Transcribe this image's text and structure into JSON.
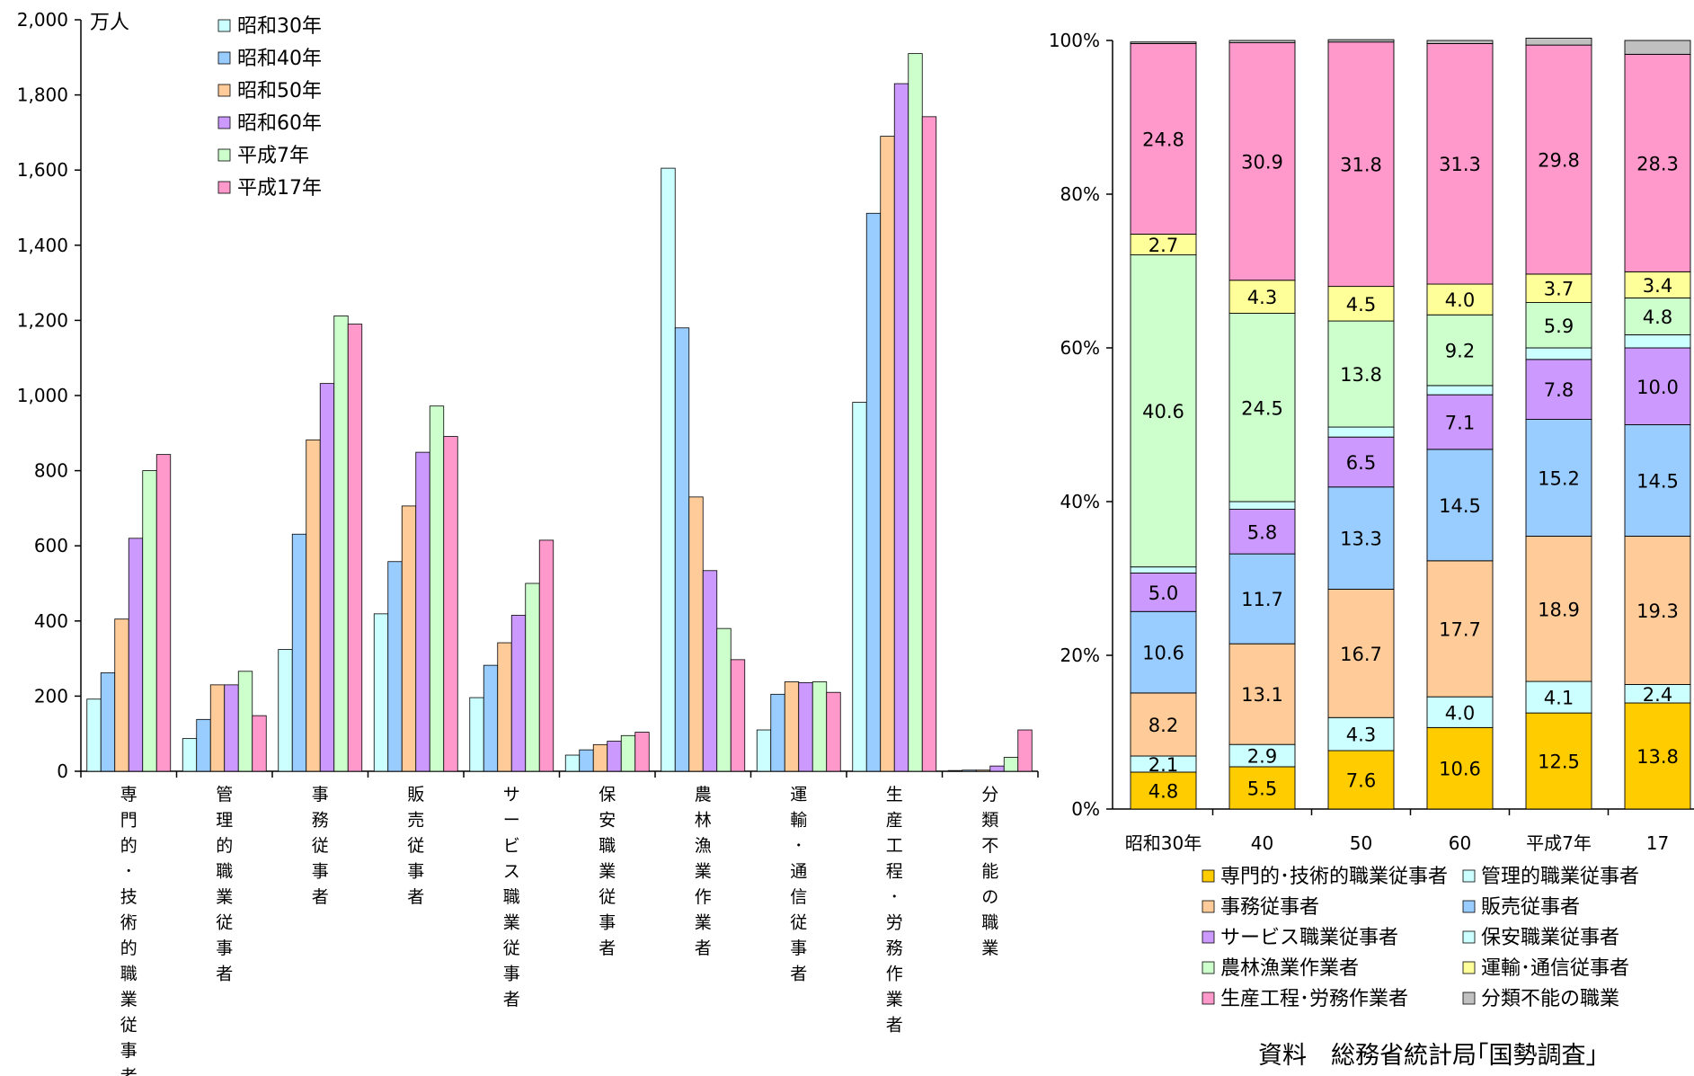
{
  "chart_data": [
    {
      "type": "bar",
      "unit_label": "万人",
      "ylim": [
        0,
        2000
      ],
      "yticks": [
        "0",
        "200",
        "400",
        "600",
        "800",
        "1,000",
        "1,200",
        "1,400",
        "1,600",
        "1,800",
        "2,000"
      ],
      "legend_position": "top-left",
      "categories": [
        "専門的・技術的職業従事者",
        "管理的職業従事者",
        "事務従事者",
        "販売従事者",
        "サービス職業従事者",
        "保安職業従事者",
        "農林漁業作業者",
        "運輸・通信従事者",
        "生産工程・労務作業者",
        "分類不能の職業"
      ],
      "series": [
        {
          "name": "昭和30年",
          "color": "#ccffff",
          "values": [
            192,
            87,
            324,
            419,
            196,
            43,
            1605,
            110,
            982,
            2
          ]
        },
        {
          "name": "昭和40年",
          "color": "#99ccff",
          "values": [
            262,
            138,
            631,
            558,
            282,
            57,
            1180,
            205,
            1485,
            3
          ]
        },
        {
          "name": "昭和50年",
          "color": "#ffcc99",
          "values": [
            405,
            230,
            882,
            706,
            342,
            71,
            730,
            238,
            1690,
            3
          ]
        },
        {
          "name": "昭和60年",
          "color": "#cc99ff",
          "values": [
            620,
            230,
            1032,
            849,
            415,
            80,
            534,
            236,
            1830,
            14
          ]
        },
        {
          "name": "平成7年",
          "color": "#ccffcc",
          "values": [
            800,
            266,
            1212,
            972,
            500,
            95,
            380,
            238,
            1910,
            37
          ]
        },
        {
          "name": "平成17年",
          "color": "#ff99cc",
          "values": [
            843,
            148,
            1190,
            891,
            615,
            104,
            297,
            210,
            1742,
            110
          ]
        }
      ]
    },
    {
      "type": "bar",
      "stacked": true,
      "ylim": [
        0,
        100
      ],
      "yticks": [
        "0%",
        "20%",
        "40%",
        "60%",
        "80%",
        "100%"
      ],
      "legend_position": "bottom",
      "categories": [
        "昭和30年",
        "40",
        "50",
        "60",
        "平成7年",
        "17"
      ],
      "series": [
        {
          "name": "専門的･技術的職業従事者",
          "color": "#ffcc00",
          "values": [
            4.8,
            5.5,
            7.6,
            10.6,
            12.5,
            13.8
          ],
          "labels": [
            "4.8",
            "5.5",
            "7.6",
            "10.6",
            "12.5",
            "13.8"
          ]
        },
        {
          "name": "管理的職業従事者",
          "color": "#ccffff",
          "values": [
            2.1,
            2.9,
            4.3,
            4.0,
            4.1,
            2.4
          ],
          "labels": [
            "2.1",
            "2.9",
            "4.3",
            "4.0",
            "4.1",
            "2.4"
          ]
        },
        {
          "name": "事務従事者",
          "color": "#ffcc99",
          "values": [
            8.2,
            13.1,
            16.7,
            17.7,
            18.9,
            19.3
          ],
          "labels": [
            "8.2",
            "13.1",
            "16.7",
            "17.7",
            "18.9",
            "19.3"
          ]
        },
        {
          "name": "販売従事者",
          "color": "#99ccff",
          "values": [
            10.6,
            11.7,
            13.3,
            14.5,
            15.2,
            14.5
          ],
          "labels": [
            "10.6",
            "11.7",
            "13.3",
            "14.5",
            "15.2",
            "14.5"
          ]
        },
        {
          "name": "サービス職業従事者",
          "color": "#cc99ff",
          "values": [
            5.0,
            5.8,
            6.5,
            7.1,
            7.8,
            10.0
          ],
          "labels": [
            "5.0",
            "5.8",
            "6.5",
            "7.1",
            "7.8",
            "10.0"
          ]
        },
        {
          "name": "保安職業従事者",
          "color": "#ccffff",
          "values": [
            0.8,
            1.0,
            1.3,
            1.2,
            1.5,
            1.7
          ],
          "labels": [
            "",
            "",
            "",
            "",
            "",
            ""
          ]
        },
        {
          "name": "農林漁業作業者",
          "color": "#ccffcc",
          "values": [
            40.6,
            24.5,
            13.8,
            9.2,
            5.9,
            4.8
          ],
          "labels": [
            "40.6",
            "24.5",
            "13.8",
            "9.2",
            "5.9",
            "4.8"
          ]
        },
        {
          "name": "運輸･通信従事者",
          "color": "#ffff99",
          "values": [
            2.7,
            4.3,
            4.5,
            4.0,
            3.7,
            3.4
          ],
          "labels": [
            "2.7",
            "4.3",
            "4.5",
            "4.0",
            "3.7",
            "3.4"
          ]
        },
        {
          "name": "生産工程･労務作業者",
          "color": "#ff99cc",
          "values": [
            24.8,
            30.9,
            31.8,
            31.3,
            29.8,
            28.3
          ],
          "labels": [
            "24.8",
            "30.9",
            "31.8",
            "31.3",
            "29.8",
            "28.3"
          ]
        },
        {
          "name": "分類不能の職業",
          "color": "#c0c0c0",
          "values": [
            0.2,
            0.3,
            0.3,
            0.4,
            0.9,
            1.8
          ],
          "labels": [
            "",
            "",
            "",
            "",
            "",
            ""
          ]
        }
      ]
    }
  ],
  "source": "資料　総務省統計局｢国勢調査｣"
}
